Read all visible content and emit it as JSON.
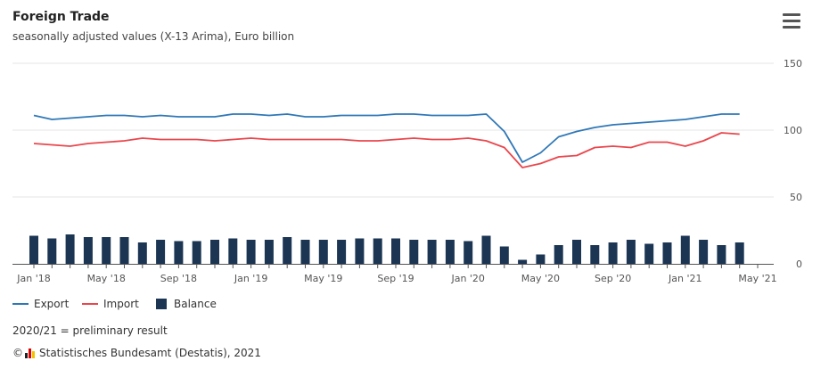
{
  "header": {
    "title": "Foreign Trade",
    "subtitle": "seasonally adjusted values (X-13 Arima), Euro billion"
  },
  "menu": {
    "icon": "hamburger-menu-icon"
  },
  "footer": {
    "note": "2020/21 = preliminary result",
    "copyright": "©",
    "source": "Statistisches Bundesamt (Destatis), 2021"
  },
  "colors": {
    "export": "#2f78b7",
    "import": "#e9474d",
    "balance": "#1b3553"
  },
  "chart_data": {
    "type": "bar",
    "title": "Foreign Trade",
    "subtitle": "seasonally adjusted values (X-13 Arima), Euro billion",
    "ylim": [
      0,
      150
    ],
    "yticks": [
      0,
      50,
      100,
      150
    ],
    "grid": true,
    "legend_placement": "bottom-left",
    "x": [
      "Jan 2018",
      "Feb 2018",
      "Mar 2018",
      "Apr 2018",
      "May 2018",
      "Jun 2018",
      "Jul 2018",
      "Aug 2018",
      "Sep 2018",
      "Oct 2018",
      "Nov 2018",
      "Dec 2018",
      "Jan 2019",
      "Feb 2019",
      "Mar 2019",
      "Apr 2019",
      "May 2019",
      "Jun 2019",
      "Jul 2019",
      "Aug 2019",
      "Sep 2019",
      "Oct 2019",
      "Nov 2019",
      "Dec 2019",
      "Jan 2020",
      "Feb 2020",
      "Mar 2020",
      "Apr 2020",
      "May 2020",
      "Jun 2020",
      "Jul 2020",
      "Aug 2020",
      "Sep 2020",
      "Oct 2020",
      "Nov 2020",
      "Dec 2020",
      "Jan 2021",
      "Feb 2021",
      "Mar 2021",
      "Apr 2021"
    ],
    "xtick_labels": [
      {
        "index": 0,
        "label": "Jan '18"
      },
      {
        "index": 4,
        "label": "May '18"
      },
      {
        "index": 8,
        "label": "Sep '18"
      },
      {
        "index": 12,
        "label": "Jan '19"
      },
      {
        "index": 16,
        "label": "May '19"
      },
      {
        "index": 20,
        "label": "Sep '19"
      },
      {
        "index": 24,
        "label": "Jan '20"
      },
      {
        "index": 28,
        "label": "May '20"
      },
      {
        "index": 32,
        "label": "Sep '20"
      },
      {
        "index": 36,
        "label": "Jan '21"
      },
      {
        "index": 40,
        "label": "May '21"
      }
    ],
    "series": [
      {
        "name": "Export",
        "type": "line",
        "values": [
          111,
          108,
          109,
          110,
          111,
          111,
          110,
          111,
          110,
          110,
          110,
          112,
          112,
          111,
          112,
          110,
          110,
          111,
          111,
          111,
          112,
          112,
          111,
          111,
          111,
          112,
          99,
          76,
          83,
          95,
          99,
          102,
          104,
          105,
          106,
          107,
          108,
          110,
          112,
          112
        ]
      },
      {
        "name": "Import",
        "type": "line",
        "values": [
          90,
          89,
          88,
          90,
          91,
          92,
          94,
          93,
          93,
          93,
          92,
          93,
          94,
          93,
          93,
          93,
          93,
          93,
          92,
          92,
          93,
          94,
          93,
          93,
          94,
          92,
          87,
          72,
          75,
          80,
          81,
          87,
          88,
          87,
          91,
          91,
          88,
          92,
          98,
          97
        ]
      },
      {
        "name": "Balance",
        "type": "bar",
        "values": [
          21,
          19,
          22,
          20,
          20,
          20,
          16,
          18,
          17,
          17,
          18,
          19,
          18,
          18,
          20,
          18,
          18,
          18,
          19,
          19,
          19,
          18,
          18,
          18,
          17,
          21,
          13,
          3,
          7,
          14,
          18,
          14,
          16,
          18,
          15,
          16,
          21,
          18,
          14,
          16
        ]
      }
    ]
  }
}
